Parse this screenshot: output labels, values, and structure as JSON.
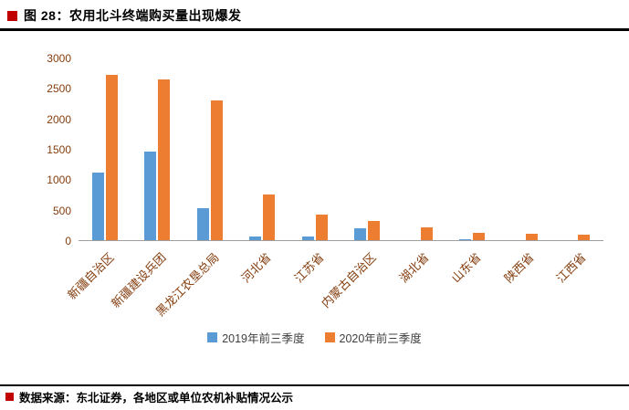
{
  "header": {
    "title": "图 28：农用北斗终端购买量出现爆发"
  },
  "footer": {
    "source": "数据来源：东北证券，各地区或单位农机补贴情况公示"
  },
  "colors": {
    "series_2019": "#5b9bd5",
    "series_2020": "#ed7d31",
    "marker_red": "#c00000",
    "axis_text": "#843c0c"
  },
  "chart_data": {
    "type": "bar",
    "title": "农用北斗终端购买量出现爆发",
    "categories": [
      "新疆自治区",
      "新疆建设兵团",
      "黑龙江农垦总局",
      "河北省",
      "江苏省",
      "内蒙古自治区",
      "湖北省",
      "山东省",
      "陕西省",
      "江西省"
    ],
    "series": [
      {
        "name": "2019年前三季度",
        "color": "#5b9bd5",
        "values": [
          1130,
          1470,
          540,
          70,
          70,
          210,
          10,
          30,
          0,
          0
        ]
      },
      {
        "name": "2020年前三季度",
        "color": "#ed7d31",
        "values": [
          2730,
          2650,
          2310,
          760,
          430,
          330,
          230,
          130,
          115,
          100
        ]
      }
    ],
    "xlabel": "",
    "ylabel": "",
    "ylim": [
      0,
      3000
    ],
    "ytick_step": 500,
    "yticks": [
      0,
      500,
      1000,
      1500,
      2000,
      2500,
      3000
    ],
    "grid": false,
    "legend_position": "bottom"
  }
}
